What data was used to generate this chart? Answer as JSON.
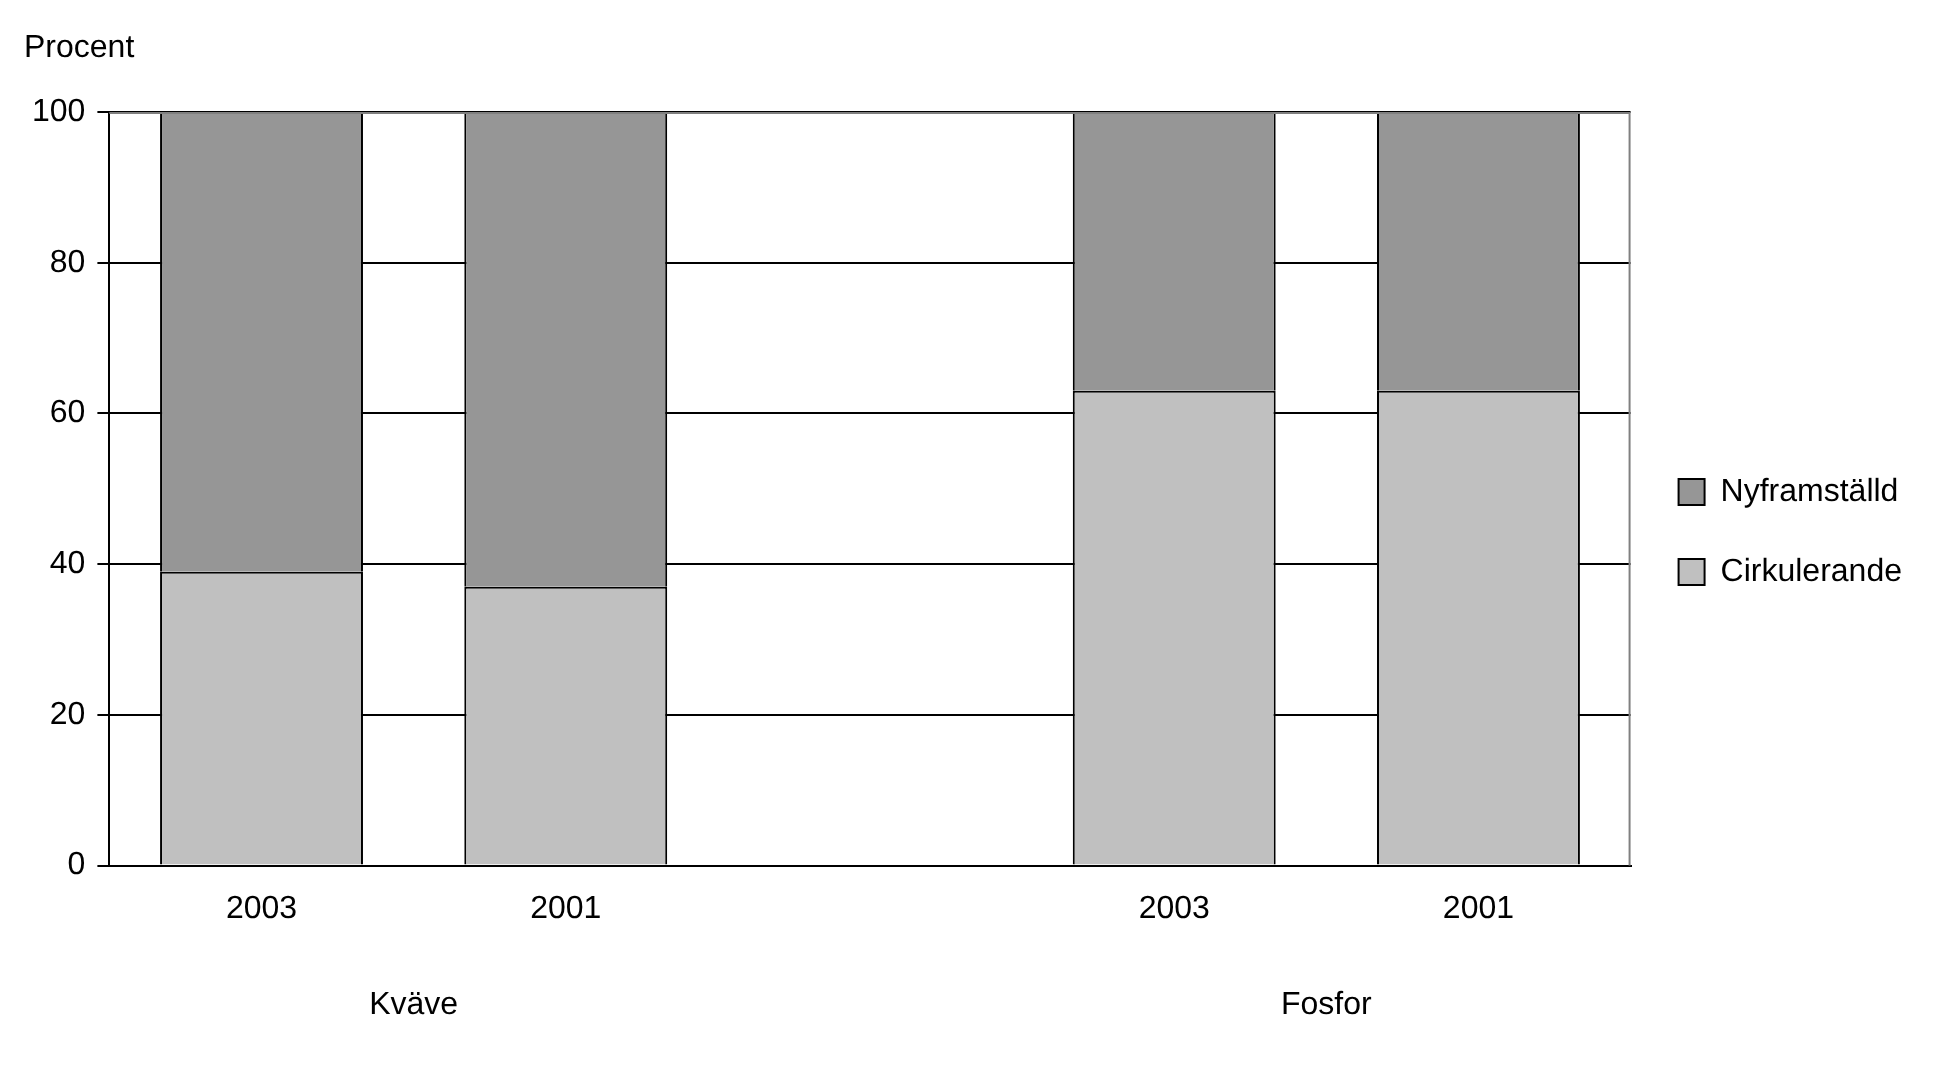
{
  "chart_data": {
    "type": "bar",
    "stacked": true,
    "ylabel": "Procent",
    "categories": [
      "2003",
      "2001",
      null,
      "2003",
      "2001"
    ],
    "series": [
      {
        "name": "Cirkulerande",
        "color": "#c0c0c0",
        "values": [
          39,
          37,
          null,
          63,
          63
        ]
      },
      {
        "name": "Nyframställd",
        "color": "#969696",
        "values": [
          61,
          63,
          null,
          37,
          37
        ]
      }
    ],
    "ylim": [
      0,
      100
    ],
    "yticks": [
      0,
      20,
      40,
      60,
      80,
      100
    ],
    "grid": "y",
    "legend": "right",
    "annotations": [
      "Kväve",
      "Fosfor"
    ]
  }
}
